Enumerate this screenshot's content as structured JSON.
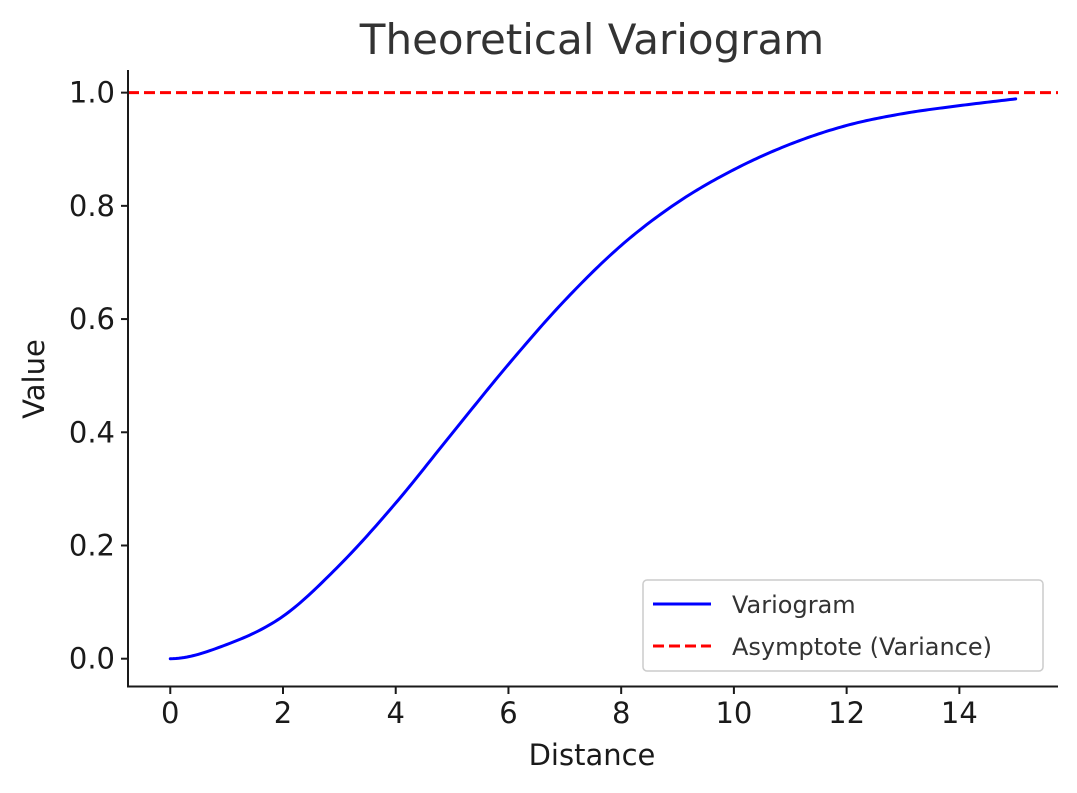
{
  "chart_data": {
    "type": "line",
    "title": "Theoretical Variogram",
    "xlabel": "Distance",
    "ylabel": "Value",
    "xlim": [
      -0.75,
      15.75
    ],
    "ylim": [
      -0.05,
      1.04
    ],
    "x_ticks": [
      0,
      2,
      4,
      6,
      8,
      10,
      12,
      14
    ],
    "x_tick_labels": [
      "0",
      "2",
      "4",
      "6",
      "8",
      "10",
      "12",
      "14"
    ],
    "y_ticks": [
      0.0,
      0.2,
      0.4,
      0.6,
      0.8,
      1.0
    ],
    "y_tick_labels": [
      "0.0",
      "0.2",
      "0.4",
      "0.6",
      "0.8",
      "1.0"
    ],
    "grid": false,
    "legend_position": "lower-right",
    "series": [
      {
        "name": "Variogram",
        "style": "solid",
        "color": "#0000ff",
        "x": [
          0,
          1,
          2,
          3,
          4,
          5,
          6,
          7,
          8,
          9,
          10,
          11,
          12,
          13,
          14,
          15
        ],
        "y": [
          0.0,
          0.025,
          0.075,
          0.165,
          0.275,
          0.398,
          0.52,
          0.633,
          0.73,
          0.806,
          0.864,
          0.909,
          0.942,
          0.963,
          0.977,
          0.989
        ]
      },
      {
        "name": "Asymptote (Variance)",
        "style": "dashed",
        "color": "#ff0000",
        "y_constant": 1.0
      }
    ]
  }
}
